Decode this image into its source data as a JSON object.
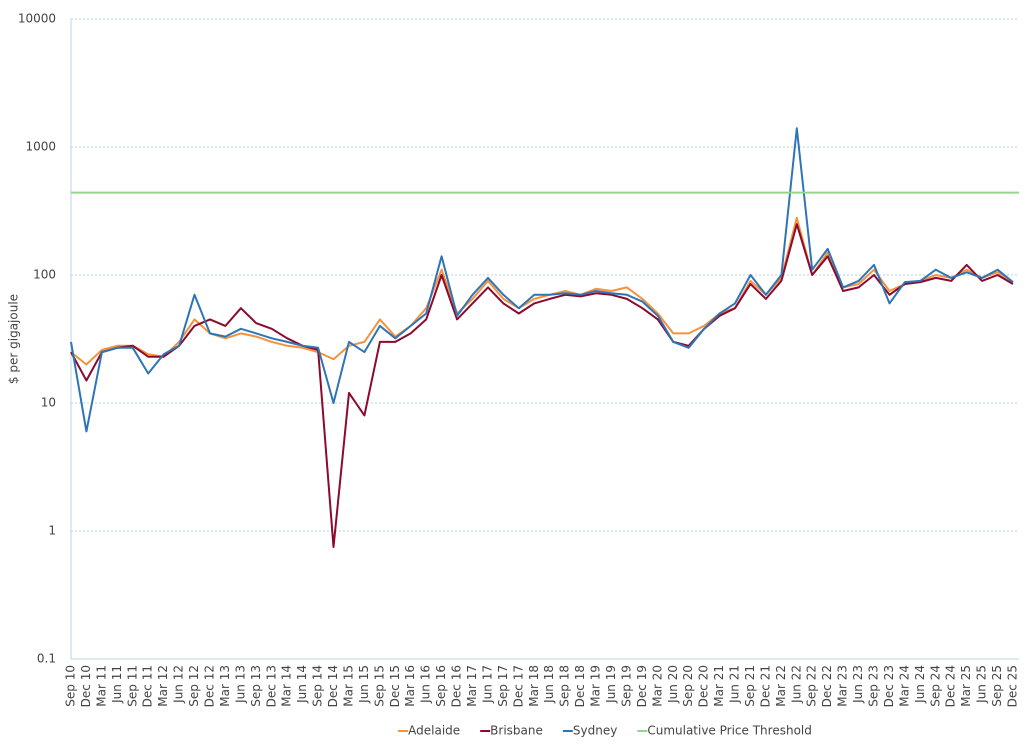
{
  "chart_data": {
    "type": "line",
    "y_label": "$ per gigajoule",
    "log_scale": true,
    "grid": true,
    "ylim": [
      0.1,
      10000
    ],
    "yticks": [
      0.1,
      1,
      10,
      100,
      1000,
      10000
    ],
    "categories": [
      "Sep 10",
      "Dec 10",
      "Mar 11",
      "Jun 11",
      "Sep 11",
      "Dec 11",
      "Mar 12",
      "Jun 12",
      "Sep 12",
      "Dec 12",
      "Mar 13",
      "Jun 13",
      "Sep 13",
      "Dec 13",
      "Mar 14",
      "Jun 14",
      "Sep 14",
      "Dec 14",
      "Mar 15",
      "Jun 15",
      "Sep 15",
      "Dec 15",
      "Mar 16",
      "Jun 16",
      "Sep 16",
      "Dec 16",
      "Mar 17",
      "Jun 17",
      "Sep 17",
      "Dec 17",
      "Mar 18",
      "Jun 18",
      "Sep 18",
      "Dec 18",
      "Mar 19",
      "Jun 19",
      "Sep 19",
      "Dec 19",
      "Mar 20",
      "Jun 20",
      "Sep 20",
      "Dec 20",
      "Mar 21",
      "Jun 21",
      "Sep 21",
      "Dec 21",
      "Mar 22",
      "Jun 22",
      "Sep 22",
      "Dec 22",
      "Mar 23",
      "Jun 23",
      "Sep 23",
      "Dec 23",
      "Mar 24",
      "Jun 24",
      "Sep 24",
      "Dec 24",
      "Mar 25",
      "Jun 25",
      "Sep 25",
      "Dec 25"
    ],
    "series": [
      {
        "name": "Adelaide",
        "color": "#f5923e",
        "values": [
          25,
          20,
          26,
          28,
          28,
          24,
          23,
          30,
          45,
          35,
          32,
          35,
          33,
          30,
          28,
          27,
          25,
          22,
          28,
          30,
          45,
          33,
          40,
          55,
          110,
          50,
          65,
          90,
          65,
          55,
          65,
          70,
          75,
          70,
          78,
          75,
          80,
          65,
          50,
          35,
          35,
          40,
          50,
          55,
          90,
          70,
          95,
          280,
          100,
          150,
          80,
          85,
          110,
          75,
          85,
          90,
          100,
          95,
          110,
          95,
          105,
          88
        ]
      },
      {
        "name": "Brisbane",
        "color": "#8b0a2e",
        "values": [
          25,
          15,
          25,
          27,
          28,
          23,
          23,
          28,
          40,
          45,
          40,
          55,
          42,
          38,
          32,
          28,
          26,
          0.75,
          12,
          8,
          30,
          30,
          35,
          45,
          100,
          45,
          60,
          80,
          60,
          50,
          60,
          65,
          70,
          68,
          72,
          70,
          65,
          55,
          45,
          30,
          28,
          38,
          48,
          55,
          85,
          65,
          90,
          250,
          100,
          140,
          75,
          80,
          100,
          70,
          85,
          88,
          95,
          90,
          120,
          90,
          100,
          85
        ]
      },
      {
        "name": "Sydney",
        "color": "#2e75b6",
        "values": [
          30,
          6,
          25,
          27,
          27,
          17,
          24,
          28,
          70,
          35,
          33,
          38,
          35,
          32,
          30,
          28,
          27,
          10,
          30,
          25,
          40,
          32,
          40,
          50,
          140,
          48,
          70,
          95,
          70,
          55,
          70,
          70,
          72,
          70,
          75,
          72,
          70,
          62,
          48,
          30,
          27,
          38,
          50,
          60,
          100,
          70,
          100,
          1400,
          110,
          160,
          80,
          90,
          120,
          60,
          88,
          90,
          110,
          95,
          105,
          95,
          110,
          88
        ]
      }
    ],
    "threshold": {
      "name": "Cumulative Price Threshold",
      "color": "#92d68a",
      "value": 440
    }
  }
}
